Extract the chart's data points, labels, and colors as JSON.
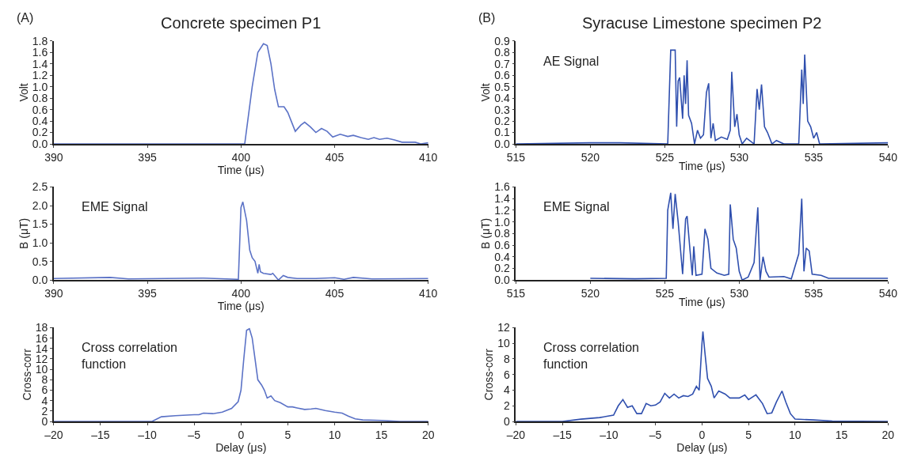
{
  "chart_data": [
    {
      "type": "line",
      "title": "Concrete specimen P1",
      "annotations": [
        "(A)"
      ],
      "xlabel": "Time (μs)",
      "ylabel": "Volt",
      "xlim": [
        390,
        410
      ],
      "xticks": [
        390,
        395,
        400,
        405,
        410
      ],
      "ylim": [
        0,
        1.8
      ],
      "yticks": [
        {
          "value": 0,
          "label": "0.0"
        },
        0.2,
        0.4,
        0.6,
        0.8,
        {
          "value": 1,
          "label": "1.0"
        },
        1.2,
        1.4,
        1.6,
        1.8
      ],
      "marker": "none",
      "line_style": "solid",
      "series": [
        {
          "color": "#5b72c6",
          "x": [
            390,
            400.2,
            400.6,
            400.9,
            401.2,
            401.4,
            401.6,
            401.8,
            402.0,
            402.3,
            402.5,
            402.9,
            403.2,
            403.4,
            403.7,
            404.0,
            404.3,
            404.6,
            404.9,
            405.3,
            405.7,
            406.0,
            406.4,
            406.8,
            407.1,
            407.4,
            407.8,
            408.2,
            408.6,
            409.3,
            409.6,
            410
          ],
          "values": [
            0,
            0,
            1.0,
            1.6,
            1.75,
            1.72,
            1.4,
            0.95,
            0.65,
            0.65,
            0.55,
            0.22,
            0.33,
            0.38,
            0.3,
            0.2,
            0.27,
            0.22,
            0.12,
            0.17,
            0.13,
            0.15,
            0.11,
            0.08,
            0.11,
            0.08,
            0.1,
            0.07,
            0.03,
            0.03,
            0,
            0.02
          ]
        }
      ]
    },
    {
      "type": "line",
      "title": "Syracuse Limestone specimen P2",
      "annotations": [
        "(B)",
        "AE Signal"
      ],
      "xlabel": "Time (μs)",
      "ylabel": "Volt",
      "xlim": [
        515,
        540
      ],
      "xticks": [
        515,
        520,
        525,
        530,
        535,
        540
      ],
      "ylim": [
        0,
        0.9
      ],
      "yticks": [
        {
          "value": 0,
          "label": "0.0"
        },
        0.1,
        0.2,
        0.3,
        0.4,
        0.5,
        0.6,
        0.7,
        0.8,
        0.9
      ],
      "marker": "none",
      "line_style": "solid",
      "series": [
        {
          "color": "#2f4fae",
          "x": [
            515,
            520,
            522,
            525.2,
            525.4,
            525.7,
            525.8,
            525.9,
            526.0,
            526.2,
            526.3,
            526.4,
            526.5,
            526.6,
            526.8,
            527.0,
            527.2,
            527.4,
            527.6,
            527.8,
            527.95,
            528.1,
            528.25,
            528.4,
            528.8,
            529.2,
            529.4,
            529.5,
            529.7,
            529.85,
            530.0,
            530.2,
            530.5,
            531.0,
            531.2,
            531.35,
            531.5,
            531.7,
            531.9,
            532.2,
            532.5,
            533.0,
            534.0,
            534.2,
            534.3,
            534.4,
            534.6,
            534.8,
            535.0,
            535.2,
            535.4,
            540
          ],
          "values": [
            0,
            0.01,
            0.01,
            0,
            0.82,
            0.82,
            0.15,
            0.55,
            0.58,
            0.22,
            0.6,
            0.35,
            0.73,
            0.25,
            0.18,
            0,
            0.12,
            0.05,
            0.08,
            0.45,
            0.53,
            0.05,
            0.18,
            0.03,
            0.06,
            0.04,
            0.12,
            0.63,
            0.15,
            0.26,
            0.08,
            0,
            0.05,
            0,
            0.48,
            0.3,
            0.52,
            0.15,
            0.1,
            0,
            0.03,
            0,
            0,
            0.65,
            0.35,
            0.78,
            0.2,
            0.15,
            0.05,
            0.1,
            0,
            0.01
          ]
        }
      ]
    },
    {
      "type": "line",
      "annotations": [
        "EME Signal"
      ],
      "xlabel": "Time (μs)",
      "ylabel": "B (μT)",
      "xlim": [
        390,
        410
      ],
      "xticks": [
        390,
        395,
        400,
        405,
        410
      ],
      "ylim": [
        0,
        2.5
      ],
      "yticks": [
        {
          "value": 0,
          "label": "0.0"
        },
        0.5,
        {
          "value": 1,
          "label": "1.0"
        },
        1.5,
        {
          "value": 2,
          "label": "2.0"
        },
        2.5
      ],
      "marker": "none",
      "line_style": "solid",
      "series": [
        {
          "color": "#5b72c6",
          "x": [
            390,
            393,
            394,
            398,
            399.8,
            399.86,
            400.0,
            400.1,
            400.3,
            400.47,
            400.6,
            400.75,
            400.9,
            400.97,
            401.04,
            401.2,
            401.6,
            401.7,
            402.0,
            402.26,
            402.5,
            403,
            404,
            405,
            405.5,
            406,
            407,
            410
          ],
          "values": [
            0.04,
            0.07,
            0.03,
            0.05,
            0.02,
            0,
            1.95,
            2.1,
            1.6,
            0.8,
            0.6,
            0.5,
            0.18,
            0.42,
            0.22,
            0.18,
            0.15,
            0.18,
            0,
            0.12,
            0.07,
            0.04,
            0.04,
            0.06,
            0.02,
            0.07,
            0.03,
            0.04
          ]
        }
      ]
    },
    {
      "type": "line",
      "annotations": [
        "EME Signal"
      ],
      "xlabel": "Time (μs)",
      "ylabel": "B (μT)",
      "xlim": [
        515,
        540
      ],
      "xticks": [
        515,
        520,
        525,
        530,
        535,
        540
      ],
      "ylim": [
        0,
        1.6
      ],
      "yticks": [
        {
          "value": 0,
          "label": "0.0"
        },
        0.2,
        0.4,
        0.6,
        0.8,
        {
          "value": 1,
          "label": "1.0"
        },
        1.2,
        1.4,
        1.6
      ],
      "marker": "none",
      "line_style": "solid",
      "series": [
        {
          "color": "#2f4fae",
          "x": [
            520,
            523,
            525.1,
            525.2,
            525.4,
            525.55,
            525.7,
            525.9,
            526.1,
            526.2,
            526.4,
            526.5,
            526.7,
            526.85,
            526.95,
            527.1,
            527.5,
            527.7,
            527.9,
            528.1,
            528.5,
            529.0,
            529.3,
            529.4,
            529.6,
            529.8,
            530.0,
            530.2,
            530.6,
            531.0,
            531.25,
            531.4,
            531.6,
            531.8,
            532.0,
            533.0,
            533.5,
            534.0,
            534.2,
            534.35,
            534.5,
            534.7,
            534.9,
            535.5,
            536,
            540
          ],
          "values": [
            0.03,
            0.02,
            0.03,
            1.2,
            1.5,
            0.88,
            1.48,
            1.0,
            0.4,
            0.1,
            1.05,
            1.1,
            0.5,
            0.08,
            0.58,
            0.08,
            0.1,
            0.88,
            0.7,
            0.2,
            0.12,
            0.08,
            0.1,
            1.3,
            0.7,
            0.55,
            0.15,
            0,
            0.05,
            0.3,
            1.25,
            0,
            0.4,
            0.15,
            0.05,
            0.06,
            0.02,
            0.45,
            1.4,
            0.15,
            0.55,
            0.5,
            0.1,
            0.08,
            0.03,
            0.03
          ]
        }
      ]
    },
    {
      "type": "line",
      "annotations": [
        "Cross correlation\nfunction"
      ],
      "xlabel": "Delay (μs)",
      "ylabel": "Cross-corr",
      "xlim": [
        -20,
        20
      ],
      "xticks": [
        {
          "value": -20,
          "label": "–20"
        },
        {
          "value": -15,
          "label": "–15"
        },
        {
          "value": -10,
          "label": "–10"
        },
        {
          "value": -5,
          "label": "–5"
        },
        0,
        5,
        10,
        15,
        20
      ],
      "ylim": [
        0,
        18
      ],
      "yticks": [
        0,
        2,
        4,
        6,
        8,
        10,
        12,
        14,
        16,
        18
      ],
      "marker": "none",
      "line_style": "solid",
      "series": [
        {
          "color": "#5b72c6",
          "x": [
            -20,
            -9.5,
            -8.5,
            -7,
            -5,
            -4.5,
            -4,
            -3,
            -2,
            -1,
            -0.3,
            0,
            0.3,
            0.6,
            0.9,
            1.2,
            1.5,
            1.8,
            2.2,
            2.5,
            2.8,
            3.2,
            3.6,
            4.2,
            5,
            5.5,
            6,
            6.8,
            7.5,
            8,
            9,
            10,
            10.8,
            11.5,
            12.2,
            13,
            15,
            17,
            20
          ],
          "values": [
            0,
            0,
            0.9,
            1.1,
            1.3,
            1.3,
            1.6,
            1.5,
            1.8,
            2.5,
            3.8,
            6,
            12,
            17.5,
            17.8,
            16,
            12,
            8,
            7,
            6,
            4.5,
            4.9,
            4.0,
            3.6,
            2.8,
            2.8,
            2.6,
            2.3,
            2.4,
            2.5,
            2.1,
            1.8,
            1.6,
            1.0,
            0.5,
            0.3,
            0.2,
            0,
            0
          ]
        }
      ]
    },
    {
      "type": "line",
      "annotations": [
        "Cross correlation\nfunction"
      ],
      "xlabel": "Delay (μs)",
      "ylabel": "Cross-corr",
      "xlim": [
        -20,
        20
      ],
      "xticks": [
        {
          "value": -20,
          "label": "–20"
        },
        {
          "value": -15,
          "label": "–15"
        },
        {
          "value": -10,
          "label": "–10"
        },
        {
          "value": -5,
          "label": "–5"
        },
        0,
        5,
        10,
        15,
        20
      ],
      "ylim": [
        0,
        12
      ],
      "yticks": [
        0,
        2,
        4,
        6,
        8,
        10,
        12
      ],
      "marker": "none",
      "line_style": "solid",
      "series": [
        {
          "color": "#2f4fae",
          "x": [
            -20,
            -15,
            -13,
            -11,
            -9.5,
            -9,
            -8.5,
            -8,
            -7.5,
            -7,
            -6.5,
            -6,
            -5.5,
            -5,
            -4.5,
            -4,
            -3.5,
            -3,
            -2.5,
            -2,
            -1.5,
            -1,
            -0.6,
            -0.3,
            0,
            0.1,
            0.3,
            0.6,
            1,
            1.3,
            1.8,
            2.5,
            3,
            4,
            4.6,
            5,
            5.8,
            6.5,
            7,
            7.5,
            8,
            8.6,
            9,
            9.5,
            10,
            12,
            14,
            20
          ],
          "values": [
            0,
            0,
            0.3,
            0.5,
            0.8,
            2,
            2.8,
            1.8,
            2.0,
            1.0,
            1.0,
            2.3,
            2.0,
            2.1,
            2.5,
            3.6,
            3.0,
            3.5,
            3.0,
            3.3,
            3.2,
            3.5,
            4.5,
            4.0,
            10,
            11.5,
            9,
            5.5,
            4.5,
            3.0,
            3.9,
            3.5,
            3.0,
            3.0,
            3.4,
            2.8,
            3.4,
            2.3,
            1.0,
            1.1,
            2.5,
            3.9,
            2.5,
            1.0,
            0.3,
            0.2,
            0.05,
            0
          ]
        }
      ]
    }
  ]
}
